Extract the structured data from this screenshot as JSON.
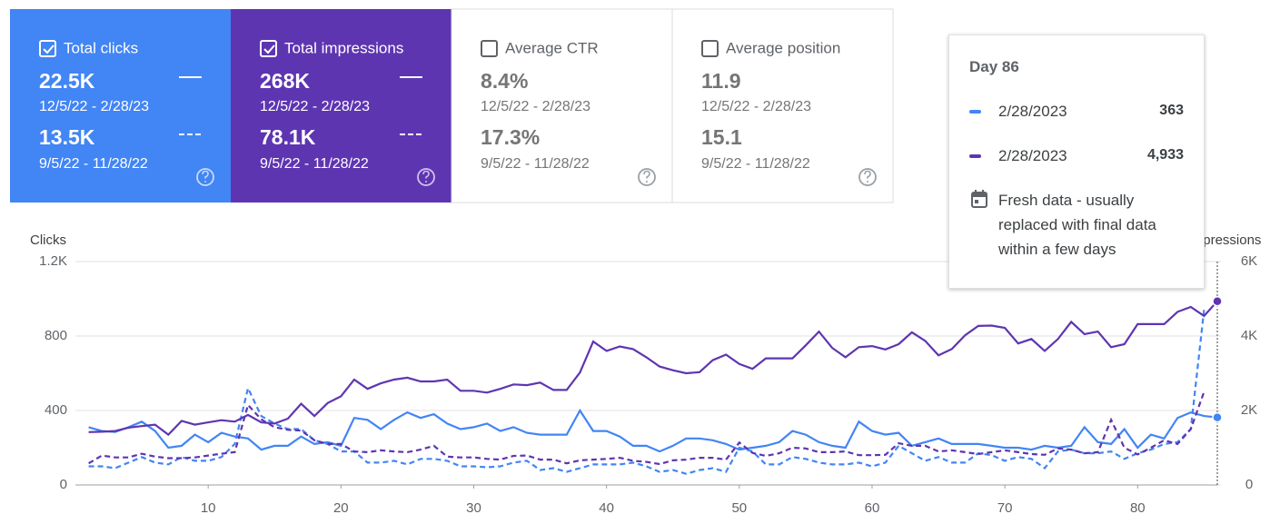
{
  "cards": [
    {
      "title": "Total clicks",
      "checked": true,
      "background": "#4285f4",
      "current_value": "22.5K",
      "current_range": "12/5/22 - 2/28/23",
      "previous_value": "13.5K",
      "previous_range": "9/5/22 - 11/28/22"
    },
    {
      "title": "Total impressions",
      "checked": true,
      "background": "#5e35b1",
      "current_value": "268K",
      "current_range": "12/5/22 - 2/28/23",
      "previous_value": "78.1K",
      "previous_range": "9/5/22 - 11/28/22"
    },
    {
      "title": "Average CTR",
      "checked": false,
      "background": "#ffffff",
      "current_value": "8.4%",
      "current_range": "12/5/22 - 2/28/23",
      "previous_value": "17.3%",
      "previous_range": "9/5/22 - 11/28/22"
    },
    {
      "title": "Average position",
      "checked": false,
      "background": "#ffffff",
      "current_value": "11.9",
      "current_range": "12/5/22 - 2/28/23",
      "previous_value": "15.1",
      "previous_range": "9/5/22 - 11/28/22"
    }
  ],
  "tooltip": {
    "title": "Day 86",
    "rows": [
      {
        "color": "#4285f4",
        "date": "2/28/2023",
        "value": "363"
      },
      {
        "color": "#5e35b1",
        "date": "2/28/2023",
        "value": "4,933"
      }
    ],
    "note": "Fresh data - usually replaced with final data within a few days"
  },
  "chart_data": {
    "type": "line",
    "y_label": "Clicks",
    "y2_label": "Impressions",
    "x": [
      1,
      2,
      3,
      4,
      5,
      6,
      7,
      8,
      9,
      10,
      11,
      12,
      13,
      14,
      15,
      16,
      17,
      18,
      19,
      20,
      21,
      22,
      23,
      24,
      25,
      26,
      27,
      28,
      29,
      30,
      31,
      32,
      33,
      34,
      35,
      36,
      37,
      38,
      39,
      40,
      41,
      42,
      43,
      44,
      45,
      46,
      47,
      48,
      49,
      50,
      51,
      52,
      53,
      54,
      55,
      56,
      57,
      58,
      59,
      60,
      61,
      62,
      63,
      64,
      65,
      66,
      67,
      68,
      69,
      70,
      71,
      72,
      73,
      74,
      75,
      76,
      77,
      78,
      79,
      80,
      81,
      82,
      83,
      84,
      85,
      86
    ],
    "xlim": [
      0,
      86
    ],
    "xticks": [
      10,
      20,
      30,
      40,
      50,
      60,
      70,
      80
    ],
    "ylim": [
      0,
      1200
    ],
    "yticks": [
      0,
      400,
      800,
      {
        "value": 1200,
        "label": "1.2K"
      }
    ],
    "y2lim": [
      0,
      6000
    ],
    "y2ticks": [
      0,
      {
        "value": 2000,
        "label": "2K"
      },
      {
        "value": 4000,
        "label": "4K"
      },
      {
        "value": 6000,
        "label": "6K"
      }
    ],
    "grid": true,
    "series": [
      {
        "color": "#4285f4",
        "dashed": false,
        "values": [
          310,
          290,
          285,
          310,
          340,
          290,
          200,
          210,
          270,
          230,
          280,
          260,
          250,
          190,
          210,
          210,
          260,
          220,
          230,
          210,
          360,
          350,
          300,
          350,
          390,
          360,
          380,
          330,
          300,
          310,
          330,
          290,
          310,
          280,
          270,
          270,
          270,
          400,
          290,
          290,
          260,
          210,
          210,
          180,
          210,
          250,
          250,
          240,
          220,
          190,
          200,
          210,
          230,
          290,
          270,
          230,
          210,
          200,
          340,
          290,
          270,
          280,
          210,
          230,
          250,
          220,
          220,
          220,
          210,
          200,
          200,
          190,
          210,
          200,
          210,
          310,
          230,
          220,
          300,
          200,
          270,
          250,
          360,
          390,
          370,
          363
        ]
      },
      {
        "color": "#4285f4",
        "dashed": true,
        "values": [
          100,
          100,
          90,
          120,
          150,
          120,
          110,
          150,
          130,
          130,
          150,
          220,
          520,
          370,
          330,
          300,
          300,
          240,
          220,
          180,
          180,
          120,
          120,
          130,
          110,
          140,
          140,
          130,
          100,
          100,
          95,
          100,
          120,
          130,
          80,
          90,
          70,
          90,
          110,
          110,
          110,
          120,
          100,
          70,
          80,
          60,
          80,
          90,
          70,
          200,
          180,
          110,
          110,
          150,
          140,
          120,
          110,
          110,
          120,
          100,
          120,
          210,
          170,
          130,
          150,
          120,
          120,
          170,
          160,
          130,
          150,
          140,
          90,
          180,
          190,
          170,
          170,
          180,
          140,
          170,
          190,
          220,
          230,
          300,
          940,
          null
        ]
      },
      {
        "color": "#5e35b1",
        "dashed": false,
        "axis": "y2",
        "values": [
          1420,
          1430,
          1450,
          1540,
          1580,
          1620,
          1350,
          1720,
          1620,
          1680,
          1740,
          1700,
          1880,
          1680,
          1650,
          1780,
          2180,
          1850,
          2200,
          2380,
          2830,
          2580,
          2730,
          2830,
          2880,
          2780,
          2780,
          2830,
          2530,
          2530,
          2480,
          2580,
          2700,
          2680,
          2750,
          2550,
          2550,
          3020,
          3850,
          3600,
          3720,
          3650,
          3430,
          3180,
          3080,
          3000,
          3030,
          3350,
          3500,
          3250,
          3120,
          3400,
          3400,
          3400,
          3750,
          4120,
          3680,
          3430,
          3700,
          3730,
          3640,
          3780,
          4100,
          3870,
          3480,
          3650,
          4020,
          4270,
          4280,
          4220,
          3800,
          3920,
          3600,
          3920,
          4380,
          4050,
          4120,
          3700,
          3780,
          4320,
          4320,
          4320,
          4650,
          4780,
          4540,
          4933
        ]
      },
      {
        "color": "#5e35b1",
        "dashed": true,
        "axis": "y2",
        "values": [
          580,
          790,
          740,
          740,
          840,
          760,
          720,
          720,
          740,
          790,
          840,
          880,
          2150,
          1760,
          1550,
          1480,
          1460,
          1200,
          1100,
          1100,
          900,
          880,
          930,
          900,
          880,
          950,
          1050,
          760,
          740,
          740,
          700,
          680,
          780,
          790,
          680,
          680,
          580,
          660,
          680,
          700,
          730,
          650,
          620,
          560,
          660,
          680,
          730,
          730,
          680,
          1140,
          860,
          780,
          850,
          1000,
          980,
          880,
          880,
          900,
          800,
          800,
          810,
          1120,
          1050,
          1050,
          900,
          930,
          880,
          830,
          880,
          930,
          880,
          830,
          810,
          980,
          950,
          850,
          880,
          1750,
          1000,
          820,
          1000,
          1200,
          1100,
          1500,
          2500,
          null
        ]
      }
    ]
  }
}
